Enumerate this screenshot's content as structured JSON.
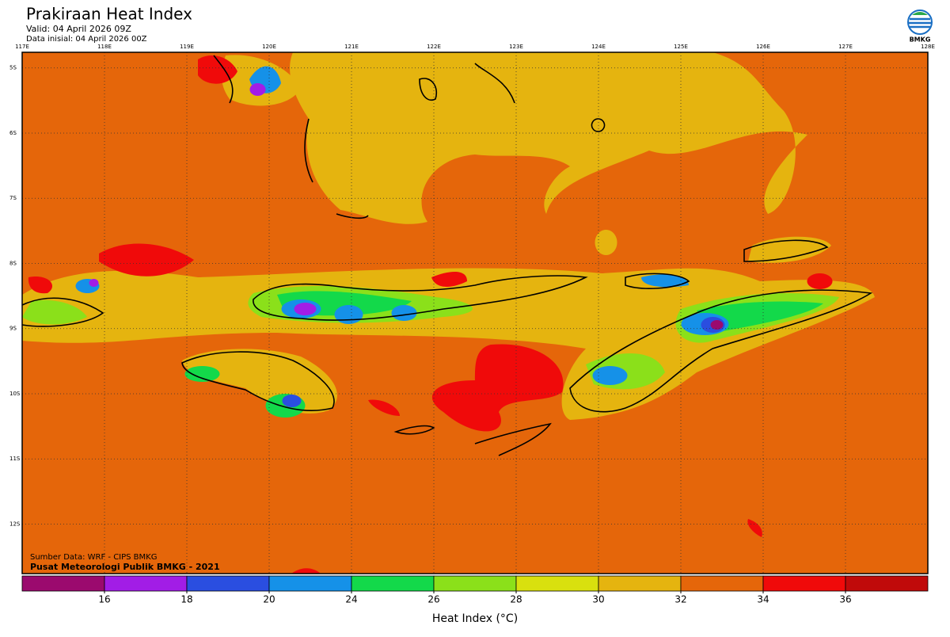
{
  "header": {
    "title": "Prakiraan Heat Index",
    "valid": "Valid: 04 April 2026 09Z",
    "init": "Data inisial: 04 April 2026 00Z"
  },
  "logo": {
    "label": "BMKG"
  },
  "map": {
    "xlim": [
      117,
      128
    ],
    "ylim": [
      -12.76,
      -4.76
    ],
    "lon_ticks": [
      {
        "value": 117,
        "label": "117E"
      },
      {
        "value": 118,
        "label": "118E"
      },
      {
        "value": 119,
        "label": "119E"
      },
      {
        "value": 120,
        "label": "120E"
      },
      {
        "value": 121,
        "label": "121E"
      },
      {
        "value": 122,
        "label": "122E"
      },
      {
        "value": 123,
        "label": "123E"
      },
      {
        "value": 124,
        "label": "124E"
      },
      {
        "value": 125,
        "label": "125E"
      },
      {
        "value": 126,
        "label": "126E"
      },
      {
        "value": 127,
        "label": "127E"
      },
      {
        "value": 128,
        "label": "128E"
      }
    ],
    "lat_ticks": [
      {
        "value": -5,
        "label": "5S"
      },
      {
        "value": -6,
        "label": "6S"
      },
      {
        "value": -7,
        "label": "7S"
      },
      {
        "value": -8,
        "label": "8S"
      },
      {
        "value": -9,
        "label": "9S"
      },
      {
        "value": -10,
        "label": "10S"
      },
      {
        "value": -11,
        "label": "11S"
      },
      {
        "value": -12,
        "label": "12S"
      }
    ],
    "grid": true
  },
  "source": [
    "Sumber Data: WRF - CIPS BMKG",
    "Pusat Meteorologi Publik BMKG - 2021"
  ],
  "colorbar": {
    "ticks": [
      16,
      18,
      20,
      24,
      26,
      28,
      30,
      32,
      34,
      36
    ],
    "colors": [
      "#9b0a6e",
      "#a21de6",
      "#2a4ee0",
      "#1591e8",
      "#13d94a",
      "#8be01a",
      "#d9e00e",
      "#e5b40f",
      "#e5660a",
      "#f00a0a",
      "#c00a0a"
    ],
    "label": "Heat Index (°C)"
  }
}
